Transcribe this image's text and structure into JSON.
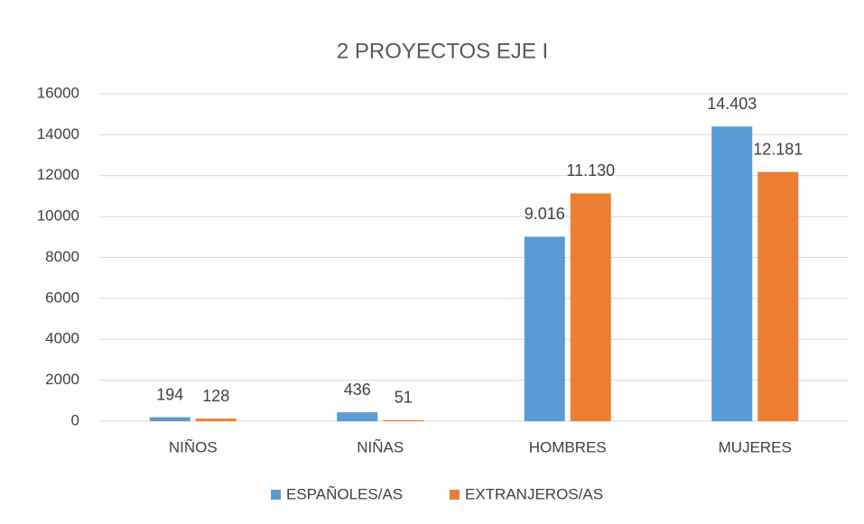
{
  "chart_data": {
    "type": "bar",
    "title": "2 PROYECTOS EJE I",
    "categories": [
      "NIÑOS",
      "NIÑAS",
      "HOMBRES",
      "MUJERES"
    ],
    "series": [
      {
        "name": "ESPAÑOLES/AS",
        "color": "#5b9bd5",
        "values": [
          194,
          436,
          9016,
          14403
        ],
        "value_labels": [
          "194",
          "436",
          "9.016",
          "14.403"
        ]
      },
      {
        "name": "EXTRANJEROS/AS",
        "color": "#ed7d31",
        "values": [
          128,
          51,
          11130,
          12181
        ],
        "value_labels": [
          "128",
          "51",
          "11.130",
          "12.181"
        ]
      }
    ],
    "ylim": [
      0,
      16000
    ],
    "yticks": [
      0,
      2000,
      4000,
      6000,
      8000,
      10000,
      12000,
      14000,
      16000
    ],
    "grid": true,
    "legend": "bottom"
  }
}
